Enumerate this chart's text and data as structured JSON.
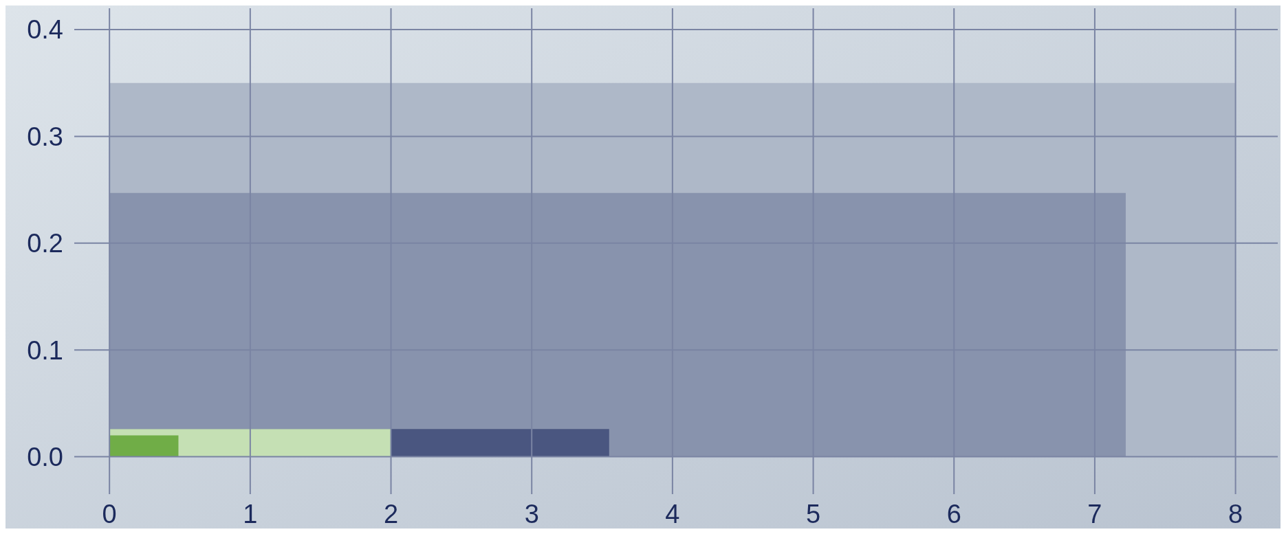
{
  "chart_data": {
    "type": "area",
    "xlim": [
      -0.25,
      8.3
    ],
    "ylim": [
      -0.035,
      0.42
    ],
    "xticks": [
      0,
      1,
      2,
      3,
      4,
      5,
      6,
      7,
      8
    ],
    "yticks": [
      {
        "value": 0,
        "label": "0.0"
      },
      {
        "value": 0.1,
        "label": "0.1"
      },
      {
        "value": 0.2,
        "label": "0.2"
      },
      {
        "value": 0.3,
        "label": "0.3"
      },
      {
        "value": 0.4,
        "label": "0.4"
      }
    ],
    "grid": true,
    "series": [
      {
        "color": "#aeb8c8",
        "x": [
          0,
          8
        ],
        "values": [
          0.35,
          0.35
        ]
      },
      {
        "color": "#8893ad",
        "x": [
          0,
          7.22
        ],
        "values": [
          0.247,
          0.247
        ]
      },
      {
        "color": "#4a5680",
        "x": [
          0,
          3.55
        ],
        "values": [
          0.026,
          0.026
        ]
      },
      {
        "color": "#c5e0b4",
        "x": [
          0,
          2
        ],
        "values": [
          0.026,
          0.026
        ]
      },
      {
        "color": "#70ad47",
        "x": [
          0,
          0.49
        ],
        "values": [
          0.02,
          0.02
        ]
      }
    ]
  }
}
